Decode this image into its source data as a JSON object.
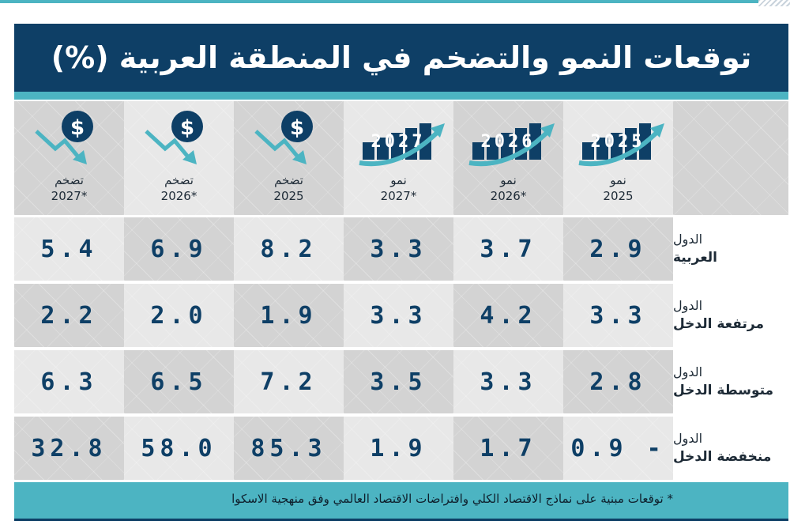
{
  "title": "توقعات النمو والتضخم في المنطقة العربية (%)",
  "colors": {
    "navy": "#0e3f66",
    "teal": "#4cb4c2",
    "cell_dark": "#d3d3d3",
    "cell_light": "#e8e8e8"
  },
  "chart_data": {
    "type": "table",
    "columns": [
      {
        "line1": "نمو",
        "line2": "2025",
        "icon": "growth-bars-arrow-icon",
        "badge": "2025"
      },
      {
        "line1": "نمو",
        "line2": "*2026",
        "icon": "growth-bars-arrow-icon",
        "badge": "2026"
      },
      {
        "line1": "نمو",
        "line2": "*2027",
        "icon": "growth-bars-arrow-icon",
        "badge": "2027"
      },
      {
        "line1": "تضخم",
        "line2": "2025",
        "icon": "dollar-down-arrow-icon",
        "badge": ""
      },
      {
        "line1": "تضخم",
        "line2": "*2026",
        "icon": "dollar-down-arrow-icon",
        "badge": ""
      },
      {
        "line1": "تضخم",
        "line2": "*2027",
        "icon": "dollar-down-arrow-icon",
        "badge": ""
      }
    ],
    "rows": [
      {
        "line1": "الدول",
        "line2": "العربية",
        "values": [
          "2.9",
          "3.7",
          "3.3",
          "8.2",
          "6.9",
          "5.4"
        ]
      },
      {
        "line1": "الدول",
        "line2": "مرتفعة الدخل",
        "values": [
          "3.3",
          "4.2",
          "3.3",
          "1.9",
          "2.0",
          "2.2"
        ]
      },
      {
        "line1": "الدول",
        "line2": "متوسطة الدخل",
        "values": [
          "2.8",
          "3.3",
          "3.5",
          "7.2",
          "6.5",
          "6.3"
        ]
      },
      {
        "line1": "الدول",
        "line2": "منخفضة الدخل",
        "values": [
          "0.9 -",
          "1.7",
          "1.9",
          "85.3",
          "58.0",
          "32.8"
        ]
      }
    ]
  },
  "footnote": "*  توقعات مبنية على نماذج الاقتصاد الكلي وافتراضات الاقتصاد العالمي وفق منهجية الاسكوا"
}
